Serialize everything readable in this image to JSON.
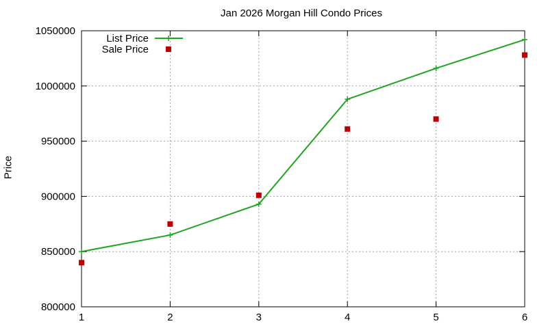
{
  "chart_data": {
    "type": "line",
    "title": "Jan 2026 Morgan Hill Condo Prices",
    "xlabel": "",
    "ylabel": "Price",
    "x": [
      1,
      2,
      3,
      4,
      5,
      6
    ],
    "xlim": [
      1,
      6
    ],
    "ylim": [
      800000,
      1050000
    ],
    "xticks": [
      "1",
      "2",
      "3",
      "4",
      "5",
      "6"
    ],
    "yticks": [
      "800000",
      "850000",
      "900000",
      "950000",
      "1000000",
      "1050000"
    ],
    "grid": true,
    "legend_position": "top-left",
    "series": [
      {
        "name": "List Price",
        "style": "line+plus",
        "color": "#1ea51e",
        "values": [
          850000,
          865000,
          893000,
          988000,
          1016000,
          1042000
        ]
      },
      {
        "name": "Sale Price",
        "style": "square",
        "color": "#c00000",
        "values": [
          840000,
          875000,
          901000,
          961000,
          970000,
          1028000
        ]
      }
    ]
  }
}
